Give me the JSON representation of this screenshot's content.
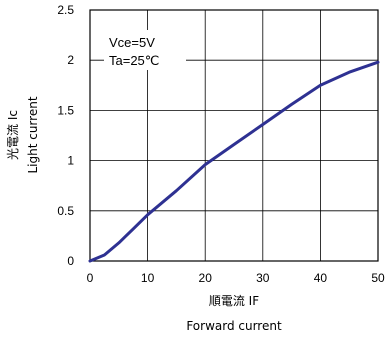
{
  "chart_data": {
    "type": "line",
    "title": "",
    "xlabel_jp": "順電流 IF",
    "xlabel_en": "Forward current",
    "ylabel_jp": "光電流 Ic",
    "ylabel_en": "Light current",
    "xlim": [
      0,
      50
    ],
    "ylim": [
      0,
      2.5
    ],
    "xticks": [
      "0",
      "10",
      "20",
      "30",
      "40",
      "50"
    ],
    "yticks": [
      "0",
      "0.5",
      "1",
      "1.5",
      "2",
      "2.5"
    ],
    "grid": true,
    "conditions": [
      "Vce=5V",
      "Ta=25℃"
    ],
    "series": [
      {
        "color": "#2e3192",
        "x": [
          0,
          2.5,
          5,
          7.5,
          10,
          15,
          20,
          25,
          30,
          35,
          40,
          45,
          50
        ],
        "y": [
          0,
          0.06,
          0.18,
          0.32,
          0.46,
          0.7,
          0.96,
          1.16,
          1.36,
          1.56,
          1.75,
          1.88,
          1.98
        ]
      }
    ]
  }
}
